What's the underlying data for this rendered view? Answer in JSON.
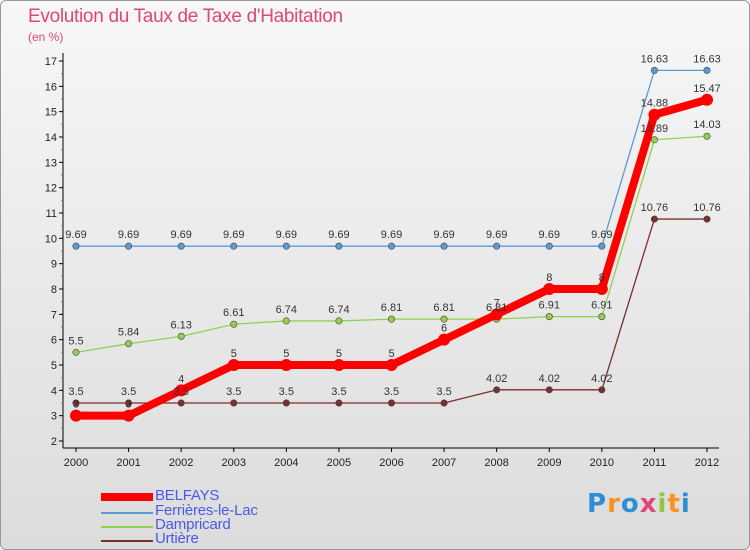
{
  "chart_data": {
    "type": "line",
    "title": "Evolution du Taux de Taxe d'Habitation",
    "subtitle": "(en %)",
    "x": [
      "2000",
      "2001",
      "2002",
      "2003",
      "2004",
      "2005",
      "2006",
      "2007",
      "2008",
      "2009",
      "2010",
      "2011",
      "2012"
    ],
    "ylim": [
      2,
      17
    ],
    "yticks": [
      2,
      3,
      4,
      5,
      6,
      7,
      8,
      9,
      10,
      11,
      12,
      13,
      14,
      15,
      16,
      17
    ],
    "grid": false,
    "legend_position": "bottom-left",
    "series": [
      {
        "name": "BELFAYS",
        "color": "#ff0000",
        "values": [
          3,
          3,
          4,
          5,
          5,
          5,
          5,
          6,
          7,
          8,
          8,
          14.88,
          15.47
        ],
        "labels": [
          "3",
          "3",
          "4",
          "5",
          "5",
          "5",
          "5",
          "6",
          "7",
          "8",
          "8",
          "14.88",
          "15.47"
        ]
      },
      {
        "name": "Ferrières-le-Lac",
        "color": "#5b9bd5",
        "values": [
          9.69,
          9.69,
          9.69,
          9.69,
          9.69,
          9.69,
          9.69,
          9.69,
          9.69,
          9.69,
          9.69,
          16.63,
          16.63
        ],
        "labels": [
          "9.69",
          "9.69",
          "9.69",
          "9.69",
          "9.69",
          "9.69",
          "9.69",
          "9.69",
          "9.69",
          "9.69",
          "9.69",
          "16.63",
          "16.63"
        ]
      },
      {
        "name": "Dampricard",
        "color": "#92d050",
        "values": [
          5.5,
          5.84,
          6.13,
          6.61,
          6.74,
          6.74,
          6.81,
          6.81,
          6.81,
          6.91,
          6.91,
          13.89,
          14.03
        ],
        "labels": [
          "5.5",
          "5.84",
          "6.13",
          "6.61",
          "6.74",
          "6.74",
          "6.81",
          "6.81",
          "6.81",
          "6.91",
          "6.91",
          "13.89",
          "14.03"
        ]
      },
      {
        "name": "Urtière",
        "color": "#7b2e2e",
        "values": [
          3.5,
          3.5,
          3.5,
          3.5,
          3.5,
          3.5,
          3.5,
          3.5,
          4.02,
          4.02,
          4.02,
          10.76,
          10.76
        ],
        "labels": [
          "3.5",
          "3.5",
          "3.5",
          "3.5",
          "3.5",
          "3.5",
          "3.5",
          "3.5",
          "4.02",
          "4.02",
          "4.02",
          "10.76",
          "10.76"
        ]
      }
    ]
  },
  "legend": [
    {
      "label": "BELFAYS",
      "color": "#ff0000"
    },
    {
      "label": "Ferrières-le-Lac",
      "color": "#5b9bd5"
    },
    {
      "label": "Dampricard",
      "color": "#92d050"
    },
    {
      "label": "Urtière",
      "color": "#7b2e2e"
    }
  ],
  "logo": {
    "text": "Proxiti",
    "letters": [
      "P",
      "r",
      "o",
      "x",
      "i",
      "t",
      "i"
    ],
    "colors": [
      "#2b8fd6",
      "#f7931e",
      "#2b8fd6",
      "#e0457b",
      "#92c83e",
      "#f7931e",
      "#2b8fd6"
    ]
  }
}
